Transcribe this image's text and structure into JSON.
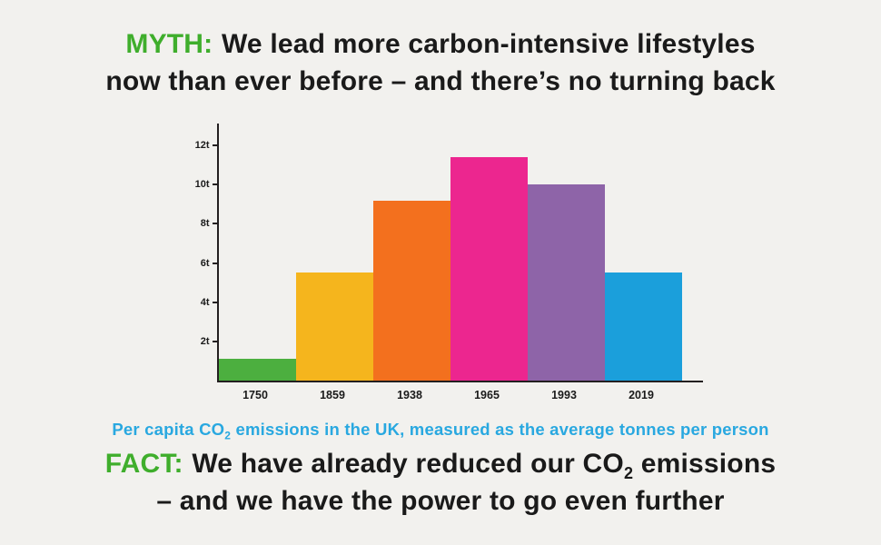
{
  "colors": {
    "background": "#f2f1ee",
    "accent_green": "#3fae2c",
    "heading_text": "#1a1a1a",
    "caption_blue": "#29a8e0",
    "axis": "#231f20"
  },
  "myth": {
    "label": "MYTH:",
    "line1": "We lead more carbon-intensive lifestyles",
    "line2": "now than ever before – and there’s no turning back"
  },
  "caption": {
    "before": "Per capita CO",
    "subscript": "2",
    "after": " emissions in the UK, measured as the average tonnes per person"
  },
  "fact": {
    "label": "FACT:",
    "line1_before": "We have already reduced our CO",
    "subscript": "2",
    "line1_after": " emissions",
    "line2": "– and we have the power to go even further"
  },
  "chart_data": {
    "type": "bar",
    "categories": [
      "1750",
      "1859",
      "1938",
      "1965",
      "1993",
      "2019"
    ],
    "values": [
      1.1,
      5.5,
      9.2,
      11.4,
      10,
      5.5
    ],
    "unit": "tonnes CO2 per person",
    "bar_colors": [
      "#4caf3f",
      "#f5b51d",
      "#f3701e",
      "#ec268f",
      "#8e64a8",
      "#1b9fdb"
    ],
    "ytick_values": [
      2,
      4,
      6,
      8,
      10,
      12
    ],
    "ytick_labels": [
      "2t",
      "4t",
      "6t",
      "8t",
      "10t",
      "12t"
    ],
    "ylim": [
      0,
      13.2
    ],
    "title": "",
    "xlabel": "",
    "ylabel": "",
    "grid": false,
    "legend": false
  }
}
